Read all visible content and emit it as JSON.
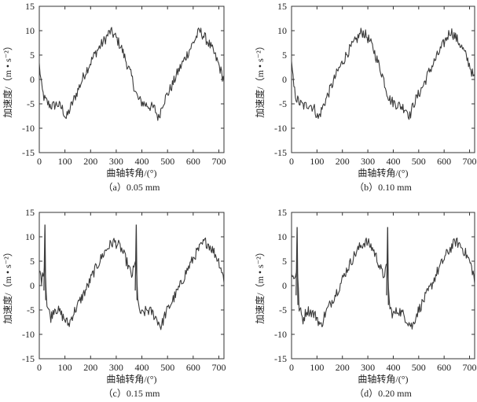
{
  "chart_data": [
    {
      "type": "line",
      "caption": "（a）0.05 mm",
      "xlabel": "曲轴转角/(°)",
      "ylabel": "加速度/（m • s⁻²）",
      "xlim": [
        0,
        720
      ],
      "ylim": [
        -15,
        15
      ],
      "xticks": [
        0,
        100,
        200,
        300,
        400,
        500,
        600,
        700
      ],
      "yticks": [
        15,
        10,
        5,
        0,
        -5,
        -10,
        -15
      ],
      "spikes": [],
      "series": [
        {
          "x": [
            0,
            10,
            20,
            35,
            50,
            70,
            90,
            105,
            120,
            140,
            160,
            180,
            200,
            220,
            240,
            260,
            275,
            285,
            300,
            320,
            340,
            360,
            375,
            385,
            395,
            410,
            430,
            450,
            465,
            480,
            500,
            520,
            540,
            560,
            580,
            600,
            615,
            625,
            640,
            660,
            680,
            700,
            715,
            720
          ],
          "y": [
            3,
            -2,
            -4,
            -5,
            -5.5,
            -5,
            -6,
            -8,
            -6,
            -3.5,
            -1,
            1.5,
            3.5,
            5.5,
            7,
            8.5,
            9.8,
            9.5,
            8.5,
            6.5,
            3.5,
            0.5,
            -2.5,
            -4,
            -4.5,
            -5,
            -5.5,
            -6,
            -8,
            -5,
            -3,
            -1,
            1.5,
            3.5,
            5.5,
            7.5,
            9,
            10,
            9,
            7.5,
            5.5,
            3,
            0.5,
            0
          ]
        }
      ]
    },
    {
      "type": "line",
      "caption": "（b）0.10 mm",
      "xlabel": "曲轴转角/(°)",
      "ylabel": "加速度/（m • s⁻²）",
      "xlim": [
        0,
        720
      ],
      "ylim": [
        -15,
        15
      ],
      "xticks": [
        0,
        100,
        200,
        300,
        400,
        500,
        600,
        700
      ],
      "yticks": [
        15,
        10,
        5,
        0,
        -5,
        -10,
        -15
      ],
      "spikes": [],
      "series": [
        {
          "x": [
            0,
            10,
            20,
            35,
            50,
            70,
            90,
            105,
            120,
            140,
            160,
            180,
            200,
            220,
            240,
            260,
            275,
            285,
            300,
            320,
            340,
            360,
            375,
            385,
            395,
            410,
            430,
            450,
            465,
            480,
            500,
            520,
            540,
            560,
            580,
            600,
            615,
            625,
            640,
            660,
            680,
            700,
            715,
            720
          ],
          "y": [
            3,
            -2,
            -4,
            -5,
            -5.5,
            -5,
            -6,
            -8,
            -6,
            -3.5,
            -1,
            1.5,
            3.5,
            5.5,
            7,
            8.5,
            9.8,
            9.5,
            8.5,
            6.5,
            3.5,
            0.5,
            -2.5,
            -4,
            -4.5,
            -5,
            -5.5,
            -6,
            -7.5,
            -5,
            -3,
            -1,
            1.5,
            3.5,
            5.5,
            7.5,
            9,
            10,
            9,
            7.5,
            5.5,
            3,
            0.5,
            0
          ]
        }
      ]
    },
    {
      "type": "line",
      "caption": "（c）0.15 mm",
      "xlabel": "曲轴转角/(°)",
      "ylabel": "加速度/（m • s⁻²）",
      "xlim": [
        0,
        720
      ],
      "ylim": [
        -15,
        15
      ],
      "xticks": [
        0,
        100,
        200,
        300,
        400,
        500,
        600,
        700
      ],
      "yticks": [
        15,
        10,
        5,
        0,
        -5,
        -10,
        -15
      ],
      "spikes": [
        {
          "x": 22,
          "peak": 12.5,
          "base": 5
        },
        {
          "x": 378,
          "peak": 12.5,
          "base": 5
        }
      ],
      "series": [
        {
          "x": [
            0,
            10,
            22,
            30,
            45,
            60,
            80,
            100,
            115,
            130,
            150,
            170,
            190,
            210,
            230,
            250,
            270,
            290,
            305,
            320,
            340,
            360,
            378,
            385,
            400,
            420,
            440,
            460,
            475,
            490,
            510,
            530,
            550,
            570,
            590,
            610,
            630,
            645,
            660,
            680,
            700,
            715,
            720
          ],
          "y": [
            3,
            1,
            5,
            -4,
            -6.5,
            -4.5,
            -5.5,
            -7,
            -8,
            -6,
            -4,
            -2,
            0,
            2.5,
            4.5,
            6.5,
            8,
            9,
            8.5,
            7.5,
            5,
            2,
            5,
            -4.5,
            -6,
            -5,
            -5.5,
            -7,
            -8.5,
            -6,
            -4,
            -2,
            0,
            2.5,
            4.5,
            6.5,
            8,
            9,
            8.5,
            7,
            5,
            2.5,
            0.5
          ]
        }
      ]
    },
    {
      "type": "line",
      "caption": "（d）0.20 mm",
      "xlabel": "曲轴转角/(°)",
      "ylabel": "加速度/（m • s⁻²）",
      "xlim": [
        0,
        720
      ],
      "ylim": [
        -15,
        15
      ],
      "xticks": [
        0,
        100,
        200,
        300,
        400,
        500,
        600,
        700
      ],
      "yticks": [
        15,
        10,
        5,
        0,
        -5,
        -10,
        -15
      ],
      "spikes": [
        {
          "x": 22,
          "peak": 12,
          "base": 4
        },
        {
          "x": 378,
          "peak": 12,
          "base": 4
        }
      ],
      "series": [
        {
          "x": [
            0,
            10,
            22,
            30,
            45,
            60,
            80,
            100,
            115,
            130,
            150,
            170,
            190,
            210,
            230,
            250,
            270,
            290,
            305,
            320,
            340,
            360,
            378,
            385,
            400,
            420,
            440,
            460,
            475,
            490,
            510,
            530,
            550,
            570,
            590,
            610,
            630,
            645,
            660,
            680,
            700,
            715,
            720
          ],
          "y": [
            3,
            1,
            4,
            -4.5,
            -7,
            -5,
            -5.5,
            -6.5,
            -8.5,
            -6,
            -4,
            -2,
            0,
            2.5,
            4.5,
            6.5,
            8,
            9,
            8.5,
            7.5,
            5,
            2,
            4,
            -4.5,
            -6,
            -5,
            -6,
            -7.5,
            -8.5,
            -6,
            -4,
            -2,
            0,
            2.5,
            4.5,
            6.5,
            8,
            9,
            8.5,
            7,
            5,
            2.5,
            0.5
          ]
        }
      ]
    }
  ]
}
